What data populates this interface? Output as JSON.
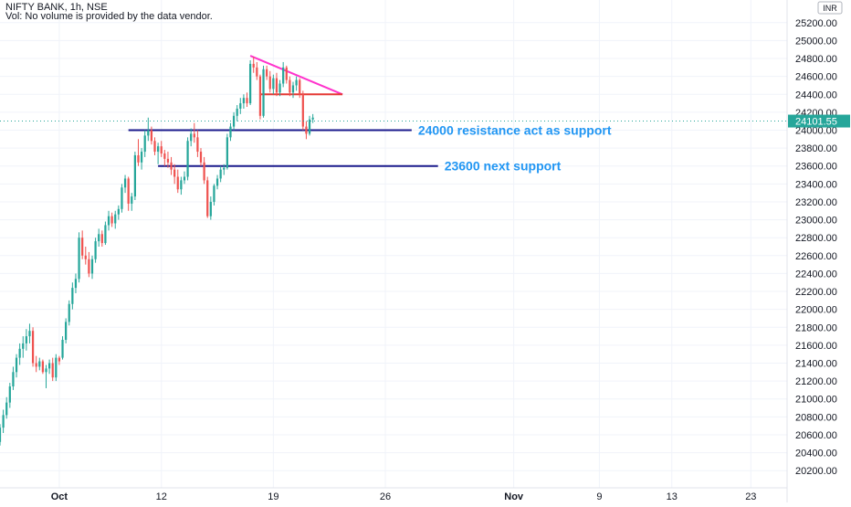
{
  "header": {
    "symbol_line": "NIFTY BANK, 1h, NSE",
    "volume_note": "Vol: No volume is provided by the data vendor."
  },
  "chart_data": {
    "type": "candlestick",
    "interval": "1h",
    "currency_label": "INR",
    "last_price": "24101.55",
    "ylim": [
      20100,
      25300
    ],
    "y_ticks": [
      "25200.00",
      "25000.00",
      "24800.00",
      "24600.00",
      "24400.00",
      "24200.00",
      "24000.00",
      "23800.00",
      "23600.00",
      "23400.00",
      "23200.00",
      "23000.00",
      "22800.00",
      "22600.00",
      "22400.00",
      "22200.00",
      "22000.00",
      "21800.00",
      "21600.00",
      "21400.00",
      "21200.00",
      "21000.00",
      "20800.00",
      "20600.00",
      "20400.00",
      "20200.00"
    ],
    "x_ticks": [
      {
        "label": "Oct",
        "t": 5
      },
      {
        "label": "12",
        "t": 36
      },
      {
        "label": "19",
        "t": 70
      },
      {
        "label": "26",
        "t": 104
      },
      {
        "label": "Nov",
        "t": 143
      },
      {
        "label": "9",
        "t": 169
      },
      {
        "label": "13",
        "t": 191
      },
      {
        "label": "23",
        "t": 215
      }
    ],
    "xlim": [
      -13,
      226
    ],
    "candles": [
      [
        -13,
        20520,
        20720,
        20480,
        20680
      ],
      [
        -12,
        20680,
        20880,
        20620,
        20820
      ],
      [
        -11,
        20820,
        21020,
        20780,
        20960
      ],
      [
        -10,
        20960,
        21180,
        20900,
        21140
      ],
      [
        -9,
        21140,
        21360,
        21100,
        21300
      ],
      [
        -8,
        21300,
        21500,
        21240,
        21460
      ],
      [
        -7,
        21460,
        21620,
        21380,
        21560
      ],
      [
        -6,
        21560,
        21700,
        21460,
        21620
      ],
      [
        -5,
        21620,
        21780,
        21540,
        21700
      ],
      [
        -4,
        21700,
        21840,
        21620,
        21760
      ],
      [
        -3,
        21760,
        21800,
        21360,
        21400
      ],
      [
        -2,
        21400,
        21480,
        21300,
        21360
      ],
      [
        -1,
        21360,
        21460,
        21320,
        21420
      ],
      [
        0,
        21420,
        21440,
        21280,
        21300
      ],
      [
        1,
        21300,
        21380,
        21120,
        21340
      ],
      [
        2,
        21340,
        21440,
        21280,
        21400
      ],
      [
        3,
        21400,
        21460,
        21200,
        21240
      ],
      [
        4,
        21240,
        21500,
        21200,
        21460
      ],
      [
        5,
        21460,
        21480,
        21380,
        21420
      ],
      [
        6,
        21460,
        21700,
        21440,
        21660
      ],
      [
        7,
        21660,
        21900,
        21620,
        21860
      ],
      [
        8,
        21860,
        22100,
        21820,
        22060
      ],
      [
        9,
        22060,
        22300,
        22000,
        22240
      ],
      [
        10,
        22240,
        22400,
        22180,
        22340
      ],
      [
        11,
        22340,
        22860,
        22300,
        22800
      ],
      [
        12,
        22800,
        22880,
        22560,
        22600
      ],
      [
        13,
        22600,
        22700,
        22500,
        22560
      ],
      [
        14,
        22560,
        22640,
        22360,
        22400
      ],
      [
        15,
        22400,
        22600,
        22340,
        22560
      ],
      [
        16,
        22560,
        22800,
        22520,
        22760
      ],
      [
        17,
        22760,
        22900,
        22700,
        22840
      ],
      [
        18,
        22840,
        22880,
        22700,
        22740
      ],
      [
        19,
        22740,
        22980,
        22720,
        22940
      ],
      [
        20,
        22940,
        23100,
        22880,
        23040
      ],
      [
        21,
        23040,
        23080,
        22920,
        22960
      ],
      [
        22,
        22960,
        23100,
        22900,
        23060
      ],
      [
        23,
        23060,
        23160,
        23000,
        23120
      ],
      [
        24,
        23120,
        23400,
        23080,
        23360
      ],
      [
        25,
        23360,
        23500,
        23300,
        23460
      ],
      [
        26,
        23460,
        23480,
        23100,
        23180
      ],
      [
        27,
        23180,
        23300,
        23100,
        23260
      ],
      [
        28,
        23260,
        23760,
        23220,
        23720
      ],
      [
        29,
        23720,
        23900,
        23600,
        23640
      ],
      [
        30,
        23640,
        23800,
        23560,
        23760
      ],
      [
        31,
        23760,
        24000,
        23700,
        23940
      ],
      [
        32,
        23940,
        24140,
        23880,
        24000
      ],
      [
        33,
        24000,
        24040,
        23840,
        23880
      ],
      [
        34,
        23880,
        23920,
        23720,
        23760
      ],
      [
        35,
        23760,
        23860,
        23620,
        23820
      ],
      [
        36,
        23820,
        23880,
        23700,
        23740
      ],
      [
        37,
        23740,
        23780,
        23600,
        23680
      ],
      [
        38,
        23680,
        23760,
        23580,
        23640
      ],
      [
        39,
        23640,
        23700,
        23500,
        23560
      ],
      [
        40,
        23560,
        23620,
        23400,
        23480
      ],
      [
        41,
        23480,
        23560,
        23300,
        23340
      ],
      [
        42,
        23340,
        23480,
        23280,
        23440
      ],
      [
        43,
        23440,
        23540,
        23400,
        23480
      ],
      [
        44,
        23480,
        23920,
        23440,
        23880
      ],
      [
        45,
        23880,
        24020,
        23820,
        23960
      ],
      [
        46,
        23960,
        24080,
        23860,
        23920
      ],
      [
        47,
        23920,
        24000,
        23700,
        23760
      ],
      [
        48,
        23760,
        23800,
        23600,
        23640
      ],
      [
        49,
        23640,
        23700,
        23400,
        23440
      ],
      [
        50,
        23440,
        23480,
        23020,
        23040
      ],
      [
        51,
        23040,
        23260,
        23000,
        23200
      ],
      [
        52,
        23200,
        23400,
        23160,
        23380
      ],
      [
        53,
        23380,
        23500,
        23340,
        23460
      ],
      [
        54,
        23460,
        23600,
        23420,
        23560
      ],
      [
        55,
        23560,
        23620,
        23500,
        23580
      ],
      [
        56,
        23580,
        23960,
        23560,
        23920
      ],
      [
        57,
        23920,
        24080,
        23880,
        24040
      ],
      [
        58,
        24040,
        24200,
        24000,
        24160
      ],
      [
        59,
        24160,
        24280,
        24100,
        24240
      ],
      [
        60,
        24240,
        24360,
        24180,
        24300
      ],
      [
        61,
        24300,
        24400,
        24240,
        24360
      ],
      [
        62,
        24360,
        24420,
        24260,
        24300
      ],
      [
        63,
        24300,
        24780,
        24280,
        24740
      ],
      [
        64,
        24740,
        24820,
        24640,
        24700
      ],
      [
        65,
        24700,
        24760,
        24560,
        24600
      ],
      [
        66,
        24600,
        24620,
        24120,
        24160
      ],
      [
        67,
        24160,
        24720,
        24140,
        24680
      ],
      [
        68,
        24680,
        24720,
        24560,
        24600
      ],
      [
        69,
        24600,
        24660,
        24420,
        24460
      ],
      [
        70,
        24460,
        24620,
        24400,
        24580
      ],
      [
        71,
        24580,
        24640,
        24380,
        24420
      ],
      [
        72,
        24420,
        24560,
        24380,
        24520
      ],
      [
        73,
        24520,
        24760,
        24480,
        24700
      ],
      [
        74,
        24700,
        24720,
        24520,
        24560
      ],
      [
        75,
        24560,
        24600,
        24380,
        24420
      ],
      [
        76,
        24420,
        24540,
        24360,
        24500
      ],
      [
        77,
        24500,
        24600,
        24440,
        24560
      ],
      [
        78,
        24560,
        24580,
        24360,
        24400
      ],
      [
        79,
        24400,
        24440,
        24000,
        24040
      ],
      [
        80,
        24040,
        24100,
        23900,
        23960
      ],
      [
        81,
        23960,
        24160,
        23940,
        24120
      ],
      [
        82,
        24120,
        24180,
        24080,
        24140
      ]
    ],
    "annotations": [
      {
        "type": "line",
        "color": "#ff33cc",
        "x1": 63,
        "y1": 24830,
        "x2": 91,
        "y2": 24400
      },
      {
        "type": "line",
        "color": "#e53935",
        "x1": 66,
        "y1": 24400,
        "x2": 91,
        "y2": 24400
      },
      {
        "type": "line",
        "color": "#1a1a8c",
        "x1": 26,
        "y1": 24000,
        "x2": 112,
        "y2": 24000,
        "label": "24000 resistance act as support"
      },
      {
        "type": "line",
        "color": "#1a1a8c",
        "x1": 35,
        "y1": 23600,
        "x2": 120,
        "y2": 23600,
        "label": "23600 next support"
      }
    ],
    "colors": {
      "up": "#26a69a",
      "down": "#ef5350",
      "label_text": "#2196f3",
      "last_price_bg": "#26a69a",
      "grid": "#f0f3fa",
      "axis_text": "#131722"
    }
  }
}
